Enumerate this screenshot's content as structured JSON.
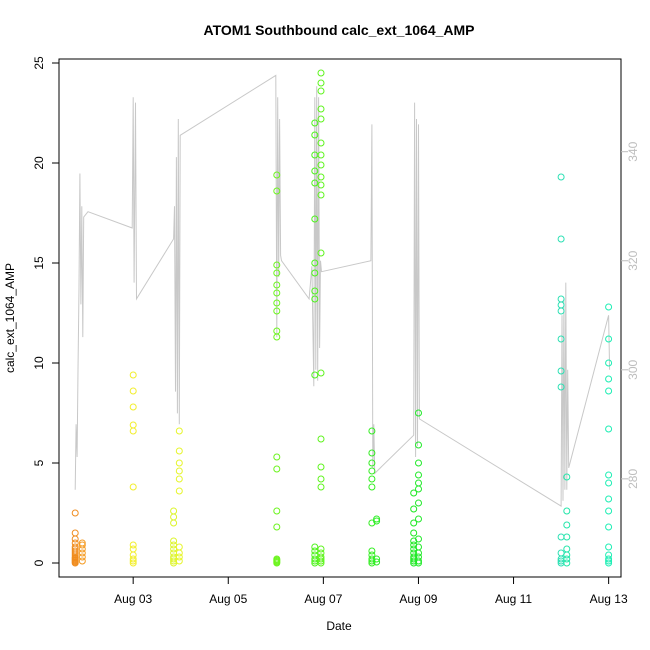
{
  "chart_data": {
    "type": "scatter",
    "title": "ATOM1 Southbound calc_ext_1064_AMP",
    "xlabel": "Date",
    "ylabel": "calc_ext_1064_AMP",
    "x_unit": "days since Aug 01",
    "xlim": [
      1.44,
      13.26
    ],
    "ylim": [
      -0.7,
      25.2
    ],
    "x_ticks": [
      {
        "value": 3,
        "label": "Aug 03"
      },
      {
        "value": 5,
        "label": "Aug 05"
      },
      {
        "value": 7,
        "label": "Aug 07"
      },
      {
        "value": 9,
        "label": "Aug 09"
      },
      {
        "value": 11,
        "label": "Aug 11"
      },
      {
        "value": 13,
        "label": "Aug 13"
      }
    ],
    "y_ticks": [
      0,
      5,
      10,
      15,
      20,
      25
    ],
    "secondary_axis": {
      "side": "right",
      "color": "#bdbdbd",
      "ylim": [
        262,
        357
      ],
      "ticks": [
        280,
        300,
        320,
        340
      ]
    },
    "series": [
      {
        "name": "calc_ext_1064_AMP",
        "kind": "points",
        "clusters": [
          {
            "x": 1.78,
            "color": "#f08c1e",
            "values": [
              0,
              0.05,
              0.1,
              0.15,
              0.2,
              0.25,
              0.3,
              0.4,
              0.5,
              0.6,
              0.7,
              0.8,
              1.0,
              1.2,
              1.5,
              2.5
            ]
          },
          {
            "x": 1.93,
            "color": "#f59a20",
            "values": [
              0.1,
              0.3,
              0.5,
              0.7,
              0.9,
              1.0
            ]
          },
          {
            "x": 3.0,
            "color": "#f2ee2c",
            "values": [
              0,
              0.1,
              0.2,
              0.4,
              0.7,
              0.9,
              3.8,
              6.6,
              6.9,
              7.8,
              8.6,
              9.4
            ]
          },
          {
            "x": 3.85,
            "color": "#dcf42a",
            "values": [
              0,
              0.1,
              0.2,
              0.3,
              0.5,
              0.7,
              0.9,
              1.1,
              2.0,
              2.3,
              2.6
            ]
          },
          {
            "x": 3.97,
            "color": "#e6f52c",
            "values": [
              0.1,
              0.3,
              0.5,
              0.8,
              3.6,
              4.2,
              4.6,
              5.0,
              5.6,
              6.6
            ]
          },
          {
            "x": 6.02,
            "color": "#6cf41e",
            "values": [
              0,
              0.05,
              0.1,
              0.15,
              0.2,
              1.8,
              2.6,
              4.7,
              5.3,
              11.3,
              11.6,
              12.6,
              13.0,
              13.5,
              13.9,
              14.5,
              14.9,
              18.6,
              19.4
            ]
          },
          {
            "x": 6.82,
            "color": "#4df21c",
            "values": [
              0,
              0.1,
              0.2,
              0.4,
              0.6,
              0.8,
              9.4,
              13.2,
              13.6,
              14.5,
              15.0,
              17.2,
              19.0,
              19.6,
              20.4,
              21.4,
              22.0
            ]
          },
          {
            "x": 6.95,
            "color": "#5ff41e",
            "values": [
              0,
              0.1,
              0.2,
              0.3,
              0.5,
              0.7,
              3.8,
              4.2,
              4.8,
              6.2,
              9.5,
              15.5,
              18.4,
              18.9,
              19.3,
              19.9,
              20.4,
              21.0,
              22.2,
              22.7,
              23.6,
              24.0,
              24.5
            ]
          },
          {
            "x": 8.02,
            "color": "#34ee22",
            "values": [
              0,
              0.1,
              0.2,
              0.4,
              0.6,
              2.0,
              3.8,
              4.2,
              4.6,
              5.0,
              5.5,
              6.6
            ]
          },
          {
            "x": 8.12,
            "color": "#2cee24",
            "values": [
              0.05,
              0.2,
              2.1,
              2.2
            ]
          },
          {
            "x": 8.9,
            "color": "#1ce820",
            "values": [
              0,
              0.1,
              0.2,
              0.3,
              0.5,
              0.7,
              0.9,
              1.1,
              1.5,
              2.0,
              2.7,
              3.5
            ]
          },
          {
            "x": 9.0,
            "color": "#22ea2a",
            "values": [
              0,
              0.1,
              0.3,
              0.5,
              0.8,
              1.2,
              2.2,
              3.0,
              3.7,
              4.0,
              4.4,
              5.0,
              5.9,
              7.5
            ]
          },
          {
            "x": 12.0,
            "color": "#2ce0b4",
            "values": [
              0,
              0.1,
              0.2,
              0.5,
              1.3,
              8.8,
              9.6,
              11.2,
              12.6,
              12.9,
              13.2,
              16.2,
              19.3
            ]
          },
          {
            "x": 12.12,
            "color": "#24e6aa",
            "values": [
              0,
              0.2,
              0.4,
              0.7,
              1.3,
              1.9,
              2.6,
              4.3
            ]
          },
          {
            "x": 13.0,
            "color": "#1eeeb4",
            "values": [
              0,
              0.1,
              0.2,
              0.4,
              0.8,
              1.8,
              2.6,
              3.2,
              4.0,
              4.4,
              6.7,
              8.6,
              9.2,
              10.0,
              11.2,
              12.8
            ]
          }
        ]
      },
      {
        "name": "secondary trace",
        "kind": "line",
        "axis": "right",
        "color": "#c8c8c8",
        "points": [
          [
            1.78,
            278
          ],
          [
            1.8,
            290
          ],
          [
            1.82,
            284
          ],
          [
            1.84,
            300
          ],
          [
            1.86,
            315
          ],
          [
            1.88,
            336
          ],
          [
            1.9,
            312
          ],
          [
            1.92,
            330
          ],
          [
            1.94,
            306
          ],
          [
            1.96,
            328
          ],
          [
            2.05,
            329
          ],
          [
            2.98,
            326
          ],
          [
            3.0,
            350
          ],
          [
            3.02,
            316
          ],
          [
            3.05,
            349
          ],
          [
            3.07,
            313
          ],
          [
            3.85,
            324
          ],
          [
            3.87,
            330
          ],
          [
            3.89,
            296
          ],
          [
            3.91,
            339
          ],
          [
            3.93,
            292
          ],
          [
            3.95,
            346
          ],
          [
            3.97,
            290
          ],
          [
            3.99,
            343
          ],
          [
            6.0,
            354
          ],
          [
            6.02,
            306
          ],
          [
            6.04,
            350
          ],
          [
            6.06,
            317
          ],
          [
            6.08,
            346
          ],
          [
            6.1,
            321
          ],
          [
            6.12,
            320
          ],
          [
            6.7,
            313
          ],
          [
            6.76,
            319
          ],
          [
            6.8,
            297
          ],
          [
            6.82,
            350
          ],
          [
            6.84,
            300
          ],
          [
            6.86,
            352
          ],
          [
            6.88,
            298
          ],
          [
            6.9,
            350
          ],
          [
            6.92,
            304
          ],
          [
            6.94,
            320
          ],
          [
            6.96,
            318
          ],
          [
            8.0,
            320
          ],
          [
            8.02,
            345
          ],
          [
            8.04,
            282
          ],
          [
            8.06,
            290
          ],
          [
            8.08,
            281
          ],
          [
            8.9,
            288
          ],
          [
            8.92,
            349
          ],
          [
            8.94,
            284
          ],
          [
            8.96,
            346
          ],
          [
            8.98,
            286
          ],
          [
            9.0,
            345
          ],
          [
            9.02,
            291
          ],
          [
            12.0,
            275
          ],
          [
            12.02,
            310
          ],
          [
            12.04,
            276
          ],
          [
            12.06,
            313
          ],
          [
            12.08,
            278
          ],
          [
            12.1,
            316
          ],
          [
            12.12,
            278
          ],
          [
            12.14,
            300
          ],
          [
            12.16,
            282
          ],
          [
            13.0,
            310
          ],
          [
            13.02,
            300
          ]
        ]
      }
    ]
  }
}
